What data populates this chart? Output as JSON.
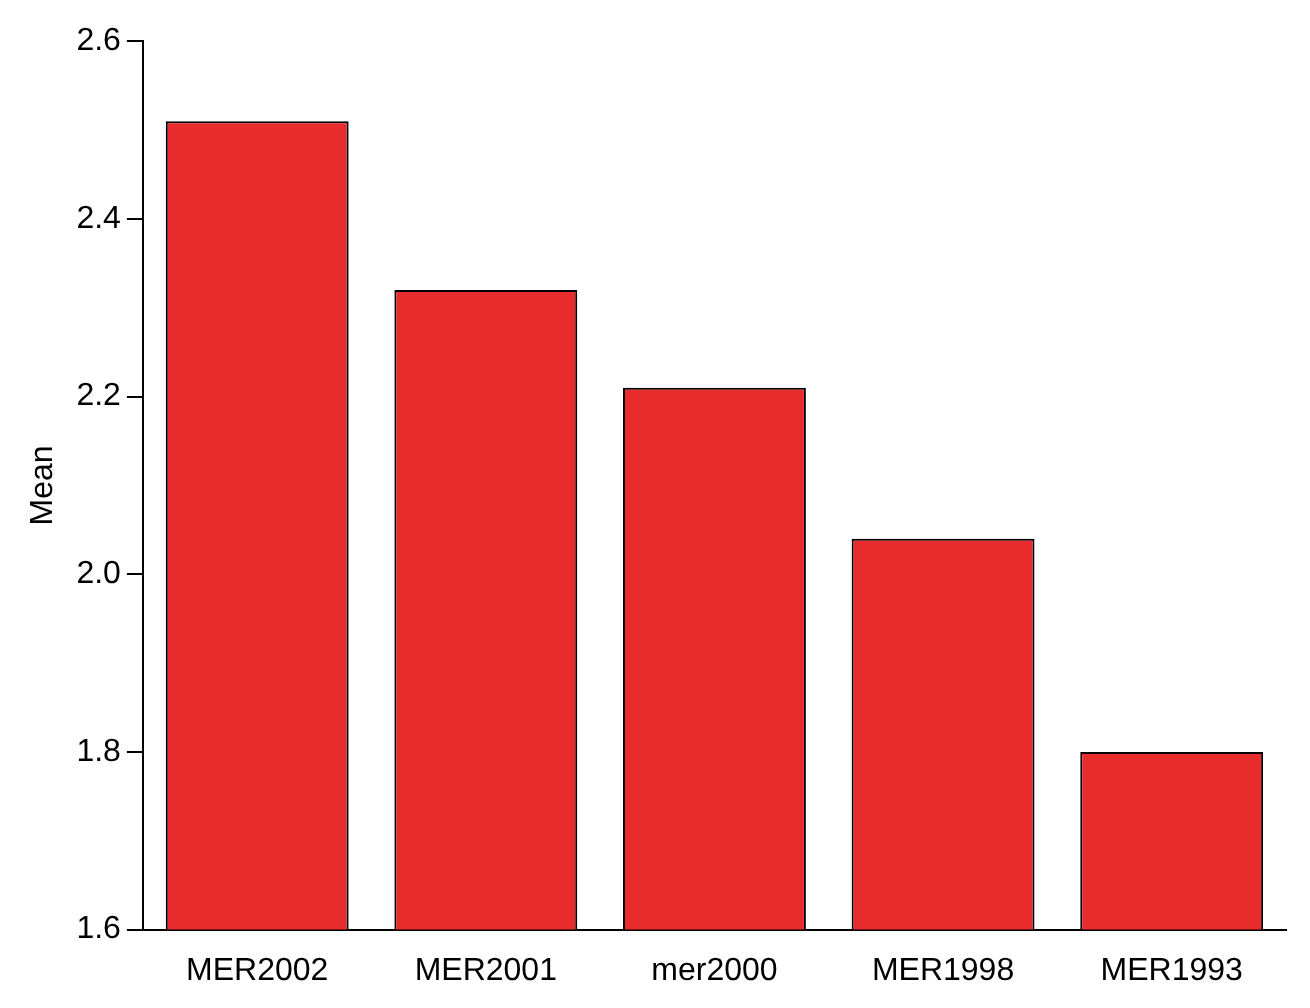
{
  "chart_data": {
    "type": "bar",
    "ylabel": "Mean",
    "categories": [
      "MER2002",
      "MER2001",
      "mer2000",
      "MER1998",
      "MER1993"
    ],
    "values": [
      2.51,
      2.32,
      2.21,
      2.04,
      1.8
    ],
    "color": "#e82c2e",
    "ylim": [
      1.6,
      2.6
    ],
    "yticks": [
      1.6,
      1.8,
      {
        "value": 2,
        "label": "2.0"
      },
      2.2,
      2.4,
      2.6
    ],
    "grid": false,
    "legend": false
  }
}
